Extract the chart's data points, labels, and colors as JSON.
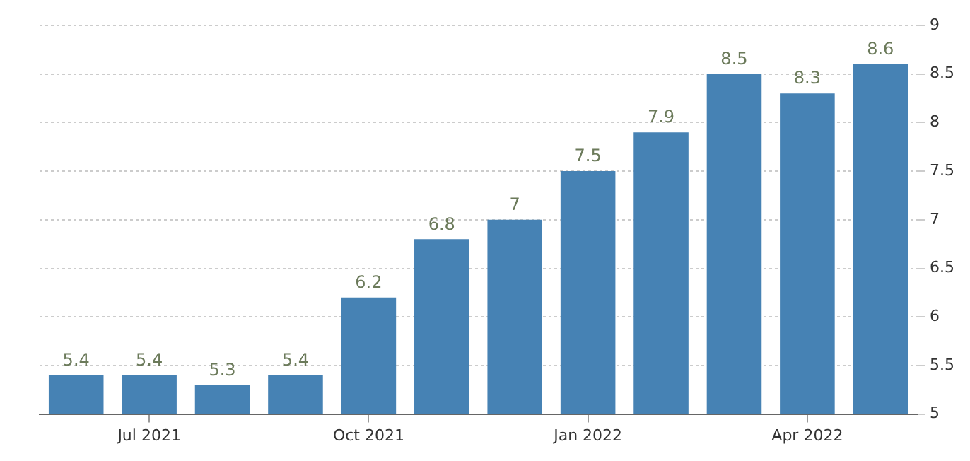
{
  "chart_data": {
    "type": "bar",
    "categories": [
      null,
      "Jul 2021",
      null,
      null,
      "Oct 2021",
      null,
      null,
      "Jan 2022",
      null,
      null,
      "Apr 2022",
      null
    ],
    "values": [
      5.4,
      5.4,
      5.3,
      5.4,
      6.2,
      6.8,
      7,
      7.5,
      7.9,
      8.5,
      8.3,
      8.6
    ],
    "color": "#4682b4",
    "ylim": [
      5,
      9
    ],
    "yticks": [
      5,
      5.5,
      6,
      6.5,
      7,
      7.5,
      8,
      8.5,
      9
    ],
    "grid": "y",
    "data_labels": true,
    "legend": false
  }
}
